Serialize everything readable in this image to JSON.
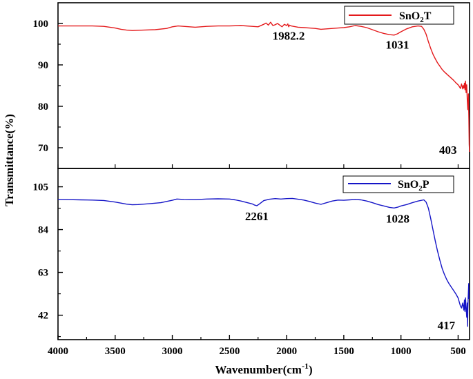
{
  "chart_data": {
    "type": "line",
    "xlabel": "Wavenumber(cm",
    "xlabel_sup": "-1",
    "xlabel_close": ")",
    "ylabel": "Transmittance(%)",
    "x_reversed": true,
    "xlim": [
      4000,
      400
    ],
    "x_ticks": [
      "4000",
      "3500",
      "3000",
      "2500",
      "2000",
      "1500",
      "1000",
      "500"
    ],
    "grid": false,
    "legend_position": "top-right",
    "panels": [
      {
        "id": "top",
        "ylim": [
          65,
          105
        ],
        "y_ticks": [
          "100",
          "90",
          "80",
          "70"
        ],
        "legend": {
          "text": "SnO",
          "sub": "2",
          "suffix": "T"
        },
        "color": "#e41a1c",
        "series": [
          {
            "name": "SnO2T",
            "x": [
              4000,
              3850,
              3700,
              3600,
              3500,
              3450,
              3400,
              3350,
              3250,
              3150,
              3050,
              3000,
              2950,
              2900,
              2800,
              2700,
              2600,
              2500,
              2400,
              2300,
              2250,
              2200,
              2180,
              2160,
              2140,
              2120,
              2100,
              2080,
              2060,
              2040,
              2020,
              2000,
              1990,
              1982,
              1975,
              1960,
              1940,
              1900,
              1850,
              1800,
              1750,
              1700,
              1650,
              1600,
              1550,
              1500,
              1450,
              1400,
              1350,
              1300,
              1250,
              1200,
              1150,
              1100,
              1060,
              1031,
              1000,
              950,
              900,
              850,
              820,
              800,
              780,
              760,
              740,
              720,
              700,
              680,
              660,
              640,
              620,
              600,
              580,
              560,
              540,
              520,
              500,
              490,
              480,
              470,
              460,
              455,
              450,
              445,
              440,
              435,
              430,
              425,
              420,
              415,
              410,
              406,
              403,
              400
            ],
            "y": [
              99.4,
              99.4,
              99.4,
              99.3,
              98.9,
              98.6,
              98.4,
              98.3,
              98.4,
              98.5,
              98.8,
              99.2,
              99.4,
              99.3,
              99.1,
              99.3,
              99.4,
              99.4,
              99.5,
              99.3,
              99.2,
              99.8,
              100.1,
              99.6,
              100.3,
              99.5,
              99.7,
              100.0,
              99.6,
              99.2,
              99.8,
              99.5,
              99.9,
              99.2,
              99.6,
              99.4,
              99.3,
              99.1,
              99.0,
              98.9,
              98.8,
              98.6,
              98.7,
              98.8,
              98.9,
              99.0,
              99.2,
              99.5,
              99.3,
              99.0,
              98.5,
              98.0,
              97.6,
              97.3,
              97.2,
              97.5,
              98.0,
              98.7,
              99.2,
              99.4,
              99.3,
              98.6,
              97.4,
              95.6,
              94.0,
              92.6,
              91.5,
              90.5,
              89.7,
              88.9,
              88.3,
              87.8,
              87.3,
              86.8,
              86.3,
              85.7,
              85.2,
              84.8,
              84.3,
              85.4,
              84.2,
              85.0,
              84.4,
              85.6,
              84.0,
              86.1,
              83.3,
              85.2,
              81.5,
              79.2,
              83.0,
              77.0,
              70.8,
              69.0
            ]
          }
        ],
        "annotations": [
          {
            "text": "1982.2",
            "x": 1982.2,
            "y": 99.6
          },
          {
            "text": "1031",
            "x": 1031,
            "y": 97.4
          },
          {
            "text": "403",
            "x": 403,
            "y": 69.2
          }
        ]
      },
      {
        "id": "bottom",
        "ylim": [
          30,
          114
        ],
        "y_ticks": [
          "105",
          "84",
          "63",
          "42"
        ],
        "legend": {
          "text": "SnO",
          "sub": "2",
          "suffix": "P"
        },
        "color": "#1515c7",
        "series": [
          {
            "name": "SnO2P",
            "x": [
              4000,
              3900,
              3800,
              3700,
              3600,
              3500,
              3400,
              3350,
              3300,
              3200,
              3100,
              3000,
              2960,
              2900,
              2800,
              2700,
              2600,
              2500,
              2450,
              2400,
              2350,
              2300,
              2280,
              2261,
              2240,
              2200,
              2150,
              2100,
              2050,
              2000,
              1950,
              1900,
              1850,
              1800,
              1750,
              1700,
              1650,
              1600,
              1550,
              1500,
              1450,
              1400,
              1350,
              1300,
              1250,
              1200,
              1150,
              1100,
              1060,
              1028,
              1000,
              950,
              900,
              850,
              800,
              780,
              760,
              740,
              720,
              700,
              680,
              660,
              640,
              620,
              600,
              580,
              560,
              540,
              520,
              500,
              490,
              480,
              470,
              460,
              450,
              445,
              440,
              435,
              430,
              425,
              420,
              417,
              415,
              412,
              410,
              407,
              405
            ],
            "y": [
              98.8,
              98.7,
              98.6,
              98.5,
              98.3,
              97.5,
              96.5,
              96.2,
              96.3,
              96.7,
              97.2,
              98.4,
              99.0,
              98.8,
              98.7,
              99.0,
              99.1,
              99.0,
              98.6,
              98.0,
              97.3,
              96.6,
              96.0,
              95.7,
              96.5,
              98.2,
              98.9,
              99.2,
              99.0,
              99.2,
              99.3,
              98.9,
              98.5,
              97.8,
              97.0,
              96.4,
              97.2,
              98.0,
              98.5,
              98.4,
              98.6,
              98.8,
              98.6,
              98.0,
              97.2,
              96.3,
              95.6,
              94.9,
              94.6,
              95.0,
              95.6,
              96.3,
              97.2,
              98.0,
              98.6,
              97.5,
              94.5,
              89.5,
              84.0,
              78.5,
              73.5,
              69.0,
              65.0,
              62.0,
              59.5,
              57.5,
              55.8,
              54.2,
              52.5,
              50.5,
              48.5,
              46.5,
              45.5,
              48.0,
              44.5,
              49.5,
              43.8,
              50.5,
              45.5,
              41.0,
              48.0,
              36.5,
              44.0,
              50.5,
              53.0,
              57.5,
              50.0
            ]
          }
        ],
        "annotations": [
          {
            "text": "2261",
            "x": 2261,
            "y": 95.7
          },
          {
            "text": "1028",
            "x": 1028,
            "y": 94.6
          },
          {
            "text": "417",
            "x": 417,
            "y": 36.5
          }
        ]
      }
    ]
  }
}
